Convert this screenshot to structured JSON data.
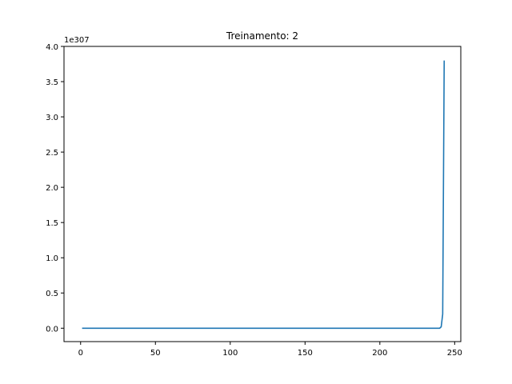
{
  "chart_data": {
    "type": "line",
    "title": "Treinamento: 2",
    "xlabel": "",
    "ylabel": "",
    "y_offset_label": "1e307",
    "xlim": [
      -11.1,
      254.1
    ],
    "ylim": [
      -0.19,
      4.0
    ],
    "x_ticks": [
      0,
      50,
      100,
      150,
      200,
      250
    ],
    "x_tick_labels": [
      "0",
      "50",
      "100",
      "150",
      "200",
      "250"
    ],
    "y_ticks": [
      0.0,
      0.5,
      1.0,
      1.5,
      2.0,
      2.5,
      3.0,
      3.5,
      4.0
    ],
    "y_tick_labels": [
      "0.0",
      "0.5",
      "1.0",
      "1.5",
      "2.0",
      "2.5",
      "3.0",
      "3.5",
      "4.0"
    ],
    "grid": false,
    "series": [
      {
        "color": "#1f77b4",
        "x": [
          1,
          50,
          100,
          150,
          200,
          240,
          241,
          242,
          243
        ],
        "y": [
          0.0,
          0.0,
          0.0,
          0.0,
          0.0,
          0.0,
          0.02,
          0.2,
          3.8
        ]
      }
    ]
  }
}
